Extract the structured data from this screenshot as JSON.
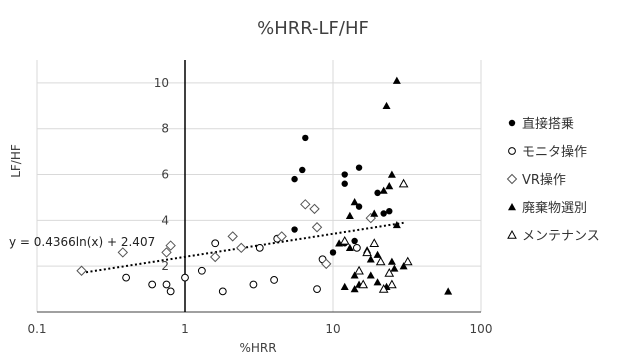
{
  "chart_data": {
    "type": "scatter",
    "title": "%HRR-LF/HF",
    "xlabel": "%HRR",
    "ylabel": "LF/HF",
    "x_scale": "log",
    "xlim": [
      0.1,
      100
    ],
    "ylim": [
      0,
      11
    ],
    "x_ticks": [
      0.1,
      1,
      10,
      100
    ],
    "x_tick_labels": [
      "0.1",
      "1",
      "10",
      "100"
    ],
    "y_ticks": [
      2,
      4,
      6,
      8,
      10
    ],
    "y_tick_labels": [
      "2",
      "4",
      "6",
      "8",
      "10"
    ],
    "grid": true,
    "legend_position": "right",
    "trendline": {
      "type": "logarithmic",
      "a": 0.4366,
      "b": 2.407,
      "x_range": [
        0.2,
        30
      ],
      "label": "y = 0.4366ln(x) + 2.407"
    },
    "series": [
      {
        "name": "直接搭乗",
        "marker": "circle-filled",
        "points": [
          [
            6.5,
            7.6
          ],
          [
            6.2,
            6.2
          ],
          [
            5.5,
            5.8
          ],
          [
            15,
            6.3
          ],
          [
            12,
            6.0
          ],
          [
            12,
            5.6
          ],
          [
            20,
            5.2
          ],
          [
            22,
            4.3
          ],
          [
            24,
            4.4
          ],
          [
            15,
            4.6
          ],
          [
            5.5,
            3.6
          ],
          [
            10,
            2.6
          ],
          [
            12,
            3.0
          ],
          [
            14,
            3.1
          ]
        ]
      },
      {
        "name": "モニタ操作",
        "marker": "circle-open",
        "points": [
          [
            0.8,
            0.9
          ],
          [
            1.0,
            1.5
          ],
          [
            1.3,
            1.8
          ],
          [
            1.8,
            0.9
          ],
          [
            0.4,
            1.5
          ],
          [
            0.6,
            1.2
          ],
          [
            0.75,
            1.2
          ],
          [
            2.9,
            1.2
          ],
          [
            4.0,
            1.4
          ],
          [
            4.2,
            3.2
          ],
          [
            7.8,
            1.0
          ],
          [
            8.5,
            2.3
          ],
          [
            1.6,
            3.0
          ],
          [
            14.5,
            2.8
          ],
          [
            3.2,
            2.8
          ]
        ]
      },
      {
        "name": "VR操作",
        "marker": "diamond-open",
        "points": [
          [
            0.2,
            1.8
          ],
          [
            0.38,
            2.6
          ],
          [
            0.75,
            2.6
          ],
          [
            0.8,
            2.9
          ],
          [
            1.6,
            2.4
          ],
          [
            2.1,
            3.3
          ],
          [
            2.4,
            2.8
          ],
          [
            4.5,
            3.3
          ],
          [
            6.5,
            4.7
          ],
          [
            7.5,
            4.5
          ],
          [
            7.8,
            3.7
          ],
          [
            9,
            2.1
          ],
          [
            18,
            4.1
          ]
        ]
      },
      {
        "name": "廃棄物選別",
        "marker": "triangle-filled",
        "points": [
          [
            27,
            10.1
          ],
          [
            23,
            9.0
          ],
          [
            25,
            6.0
          ],
          [
            24,
            5.5
          ],
          [
            22,
            5.3
          ],
          [
            14,
            4.8
          ],
          [
            13,
            4.2
          ],
          [
            19,
            4.3
          ],
          [
            27,
            3.8
          ],
          [
            11,
            3.0
          ],
          [
            13,
            2.8
          ],
          [
            17,
            2.7
          ],
          [
            18,
            2.3
          ],
          [
            20,
            2.5
          ],
          [
            25,
            2.2
          ],
          [
            30,
            2.0
          ],
          [
            14,
            1.6
          ],
          [
            15,
            1.2
          ],
          [
            18,
            1.6
          ],
          [
            20,
            1.3
          ],
          [
            23,
            1.1
          ],
          [
            26,
            1.9
          ],
          [
            14,
            1.0
          ],
          [
            12,
            1.1
          ],
          [
            60,
            0.9
          ]
        ]
      },
      {
        "name": "メンテナンス",
        "marker": "triangle-open",
        "points": [
          [
            30,
            5.6
          ],
          [
            15,
            1.8
          ],
          [
            17,
            2.6
          ],
          [
            19,
            3.0
          ],
          [
            22,
            1.0
          ],
          [
            24,
            1.7
          ],
          [
            25,
            1.2
          ],
          [
            16,
            1.2
          ],
          [
            32,
            2.2
          ],
          [
            21,
            2.2
          ],
          [
            12,
            3.1
          ]
        ]
      }
    ]
  }
}
